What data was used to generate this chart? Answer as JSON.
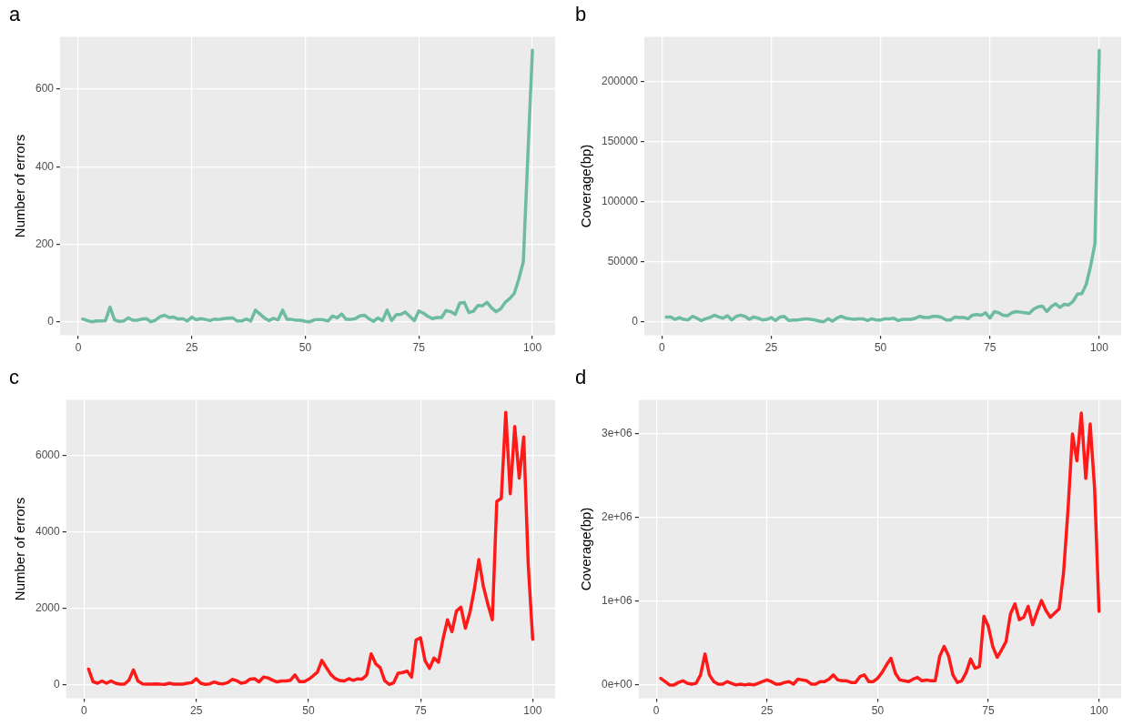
{
  "chart_data": [
    {
      "type": "line",
      "title": "a",
      "ylabel": "Number of errors",
      "grid": true,
      "line_style": "solid",
      "marker": "none",
      "x": [
        1,
        2,
        3,
        4,
        5,
        6,
        7,
        8,
        9,
        10,
        11,
        12,
        13,
        14,
        15,
        16,
        17,
        18,
        19,
        20,
        21,
        22,
        23,
        24,
        25,
        26,
        27,
        28,
        29,
        30,
        31,
        32,
        33,
        34,
        35,
        36,
        37,
        38,
        39,
        40,
        41,
        42,
        43,
        44,
        45,
        46,
        47,
        48,
        49,
        50,
        51,
        52,
        53,
        54,
        55,
        56,
        57,
        58,
        59,
        60,
        61,
        62,
        63,
        64,
        65,
        66,
        67,
        68,
        69,
        70,
        71,
        72,
        73,
        74,
        75,
        76,
        77,
        78,
        79,
        80,
        81,
        82,
        83,
        84,
        85,
        86,
        87,
        88,
        89,
        90,
        91,
        92,
        93,
        94,
        95,
        96,
        97,
        98,
        99,
        100
      ],
      "series": [
        {
          "color": "#6dbba0",
          "values": [
            7,
            3,
            0,
            2,
            2,
            3,
            38,
            5,
            1,
            2,
            10,
            4,
            4,
            7,
            8,
            0,
            4,
            13,
            17,
            11,
            12,
            7,
            8,
            2,
            12,
            5,
            8,
            6,
            3,
            7,
            6,
            8,
            9,
            10,
            2,
            2,
            7,
            2,
            30,
            20,
            10,
            3,
            9,
            5,
            30,
            6,
            6,
            4,
            4,
            1,
            0,
            5,
            6,
            5,
            2,
            15,
            10,
            20,
            6,
            6,
            8,
            15,
            17,
            8,
            1,
            10,
            3,
            30,
            3,
            18,
            19,
            25,
            14,
            3,
            28,
            22,
            14,
            8,
            11,
            11,
            29,
            26,
            19,
            48,
            50,
            24,
            27,
            42,
            41,
            50,
            36,
            26,
            33,
            50,
            60,
            73,
            110,
            155,
            430,
            700
          ]
        }
      ],
      "xlim": [
        -4,
        105
      ],
      "xticks": [
        0,
        25,
        50,
        75,
        100
      ],
      "ylim": [
        -35,
        735
      ],
      "yticks": [
        0,
        200,
        400,
        600
      ]
    },
    {
      "type": "line",
      "title": "b",
      "ylabel": "Coverage(bp)",
      "grid": true,
      "line_style": "solid",
      "marker": "none",
      "x": [
        1,
        2,
        3,
        4,
        5,
        6,
        7,
        8,
        9,
        10,
        11,
        12,
        13,
        14,
        15,
        16,
        17,
        18,
        19,
        20,
        21,
        22,
        23,
        24,
        25,
        26,
        27,
        28,
        29,
        30,
        31,
        32,
        33,
        34,
        35,
        36,
        37,
        38,
        39,
        40,
        41,
        42,
        43,
        44,
        45,
        46,
        47,
        48,
        49,
        50,
        51,
        52,
        53,
        54,
        55,
        56,
        57,
        58,
        59,
        60,
        61,
        62,
        63,
        64,
        65,
        66,
        67,
        68,
        69,
        70,
        71,
        72,
        73,
        74,
        75,
        76,
        77,
        78,
        79,
        80,
        81,
        82,
        83,
        84,
        85,
        86,
        87,
        88,
        89,
        90,
        91,
        92,
        93,
        94,
        95,
        96,
        97,
        98,
        99,
        100
      ],
      "series": [
        {
          "color": "#6dbba0",
          "values": [
            4000,
            4000,
            2000,
            3500,
            2000,
            1500,
            4500,
            3000,
            1000,
            2500,
            3500,
            5500,
            4000,
            3000,
            5000,
            1500,
            4500,
            5500,
            4500,
            2000,
            4000,
            3000,
            1500,
            2000,
            3500,
            1000,
            4000,
            4500,
            1000,
            1500,
            1500,
            2000,
            2500,
            2000,
            1500,
            500,
            0,
            2500,
            500,
            3000,
            4500,
            3000,
            2500,
            2000,
            2500,
            2500,
            1000,
            2500,
            1500,
            1500,
            2500,
            2500,
            3000,
            1000,
            2000,
            2000,
            2000,
            3000,
            4500,
            3500,
            3500,
            4500,
            4500,
            3500,
            1500,
            1500,
            4000,
            3500,
            3500,
            2500,
            5500,
            6000,
            5500,
            7500,
            3000,
            8500,
            7500,
            5500,
            5000,
            7500,
            8500,
            8000,
            7500,
            7000,
            10500,
            12500,
            13000,
            8500,
            12500,
            15000,
            12000,
            14500,
            14000,
            17000,
            23000,
            23500,
            31000,
            46000,
            65000,
            226000
          ]
        }
      ],
      "xlim": [
        -4,
        105
      ],
      "xticks": [
        0,
        25,
        50,
        75,
        100
      ],
      "ylim": [
        -11300,
        237300
      ],
      "yticks": [
        0,
        50000,
        100000,
        150000,
        200000
      ]
    },
    {
      "type": "line",
      "title": "c",
      "ylabel": "Number of errors",
      "grid": true,
      "line_style": "solid",
      "marker": "none",
      "x": [
        1,
        2,
        3,
        4,
        5,
        6,
        7,
        8,
        9,
        10,
        11,
        12,
        13,
        14,
        15,
        16,
        17,
        18,
        19,
        20,
        21,
        22,
        23,
        24,
        25,
        26,
        27,
        28,
        29,
        30,
        31,
        32,
        33,
        34,
        35,
        36,
        37,
        38,
        39,
        40,
        41,
        42,
        43,
        44,
        45,
        46,
        47,
        48,
        49,
        50,
        51,
        52,
        53,
        54,
        55,
        56,
        57,
        58,
        59,
        60,
        61,
        62,
        63,
        64,
        65,
        66,
        67,
        68,
        69,
        70,
        71,
        72,
        73,
        74,
        75,
        76,
        77,
        78,
        79,
        80,
        81,
        82,
        83,
        84,
        85,
        86,
        87,
        88,
        89,
        90,
        91,
        92,
        93,
        94,
        95,
        96,
        97,
        98,
        99,
        100
      ],
      "series": [
        {
          "color": "#ff1a1a",
          "values": [
            410,
            80,
            40,
            100,
            40,
            100,
            40,
            15,
            15,
            120,
            390,
            100,
            25,
            15,
            15,
            25,
            15,
            10,
            40,
            15,
            15,
            15,
            40,
            55,
            160,
            40,
            10,
            25,
            75,
            35,
            25,
            55,
            140,
            110,
            40,
            65,
            150,
            160,
            75,
            200,
            180,
            120,
            75,
            100,
            100,
            120,
            260,
            80,
            80,
            140,
            230,
            330,
            640,
            450,
            270,
            160,
            110,
            100,
            160,
            115,
            155,
            150,
            255,
            810,
            550,
            450,
            110,
            10,
            50,
            300,
            320,
            360,
            200,
            1170,
            1230,
            630,
            430,
            700,
            590,
            1190,
            1700,
            1390,
            1930,
            2030,
            1480,
            1890,
            2500,
            3280,
            2580,
            2110,
            1700,
            4800,
            4880,
            7130,
            5000,
            6760,
            5410,
            6490,
            3160,
            1190
          ]
        }
      ],
      "xlim": [
        -4,
        105
      ],
      "xticks": [
        0,
        25,
        50,
        75,
        100
      ],
      "ylim": [
        -355,
        7460
      ],
      "yticks": [
        0,
        2000,
        4000,
        6000
      ]
    },
    {
      "type": "line",
      "title": "d",
      "ylabel": "Coverage(bp)",
      "grid": true,
      "line_style": "solid",
      "marker": "none",
      "x": [
        1,
        2,
        3,
        4,
        5,
        6,
        7,
        8,
        9,
        10,
        11,
        12,
        13,
        14,
        15,
        16,
        17,
        18,
        19,
        20,
        21,
        22,
        23,
        24,
        25,
        26,
        27,
        28,
        29,
        30,
        31,
        32,
        33,
        34,
        35,
        36,
        37,
        38,
        39,
        40,
        41,
        42,
        43,
        44,
        45,
        46,
        47,
        48,
        49,
        50,
        51,
        52,
        53,
        54,
        55,
        56,
        57,
        58,
        59,
        60,
        61,
        62,
        63,
        64,
        65,
        66,
        67,
        68,
        69,
        70,
        71,
        72,
        73,
        74,
        75,
        76,
        77,
        78,
        79,
        80,
        81,
        82,
        83,
        84,
        85,
        86,
        87,
        88,
        89,
        90,
        91,
        92,
        93,
        94,
        95,
        96,
        97,
        98,
        99,
        100
      ],
      "series": [
        {
          "color": "#ff1a1a",
          "values": [
            80000,
            40000,
            0,
            0,
            30000,
            50000,
            20000,
            10000,
            20000,
            120000,
            370000,
            120000,
            40000,
            10000,
            10000,
            40000,
            20000,
            0,
            10000,
            0,
            10000,
            0,
            20000,
            40000,
            60000,
            40000,
            10000,
            10000,
            30000,
            40000,
            10000,
            70000,
            60000,
            50000,
            10000,
            10000,
            40000,
            40000,
            70000,
            120000,
            60000,
            50000,
            50000,
            30000,
            30000,
            100000,
            120000,
            40000,
            40000,
            80000,
            150000,
            240000,
            320000,
            140000,
            60000,
            50000,
            40000,
            70000,
            90000,
            50000,
            60000,
            50000,
            50000,
            340000,
            460000,
            350000,
            120000,
            30000,
            50000,
            150000,
            310000,
            200000,
            220000,
            820000,
            700000,
            460000,
            330000,
            420000,
            520000,
            850000,
            970000,
            780000,
            810000,
            940000,
            720000,
            870000,
            1010000,
            890000,
            810000,
            860000,
            910000,
            1350000,
            2100000,
            3000000,
            2680000,
            3250000,
            2470000,
            3120000,
            2350000,
            880000
          ]
        }
      ],
      "xlim": [
        -4,
        105
      ],
      "xticks": [
        0,
        25,
        50,
        75,
        100
      ],
      "ylim": [
        -160000,
        3410000
      ],
      "yticks": [
        {
          "value": 0,
          "label": "0e+00"
        },
        {
          "value": 1000000,
          "label": "1e+06"
        },
        {
          "value": 2000000,
          "label": "2e+06"
        },
        {
          "value": 3000000,
          "label": "3e+06"
        }
      ]
    }
  ]
}
